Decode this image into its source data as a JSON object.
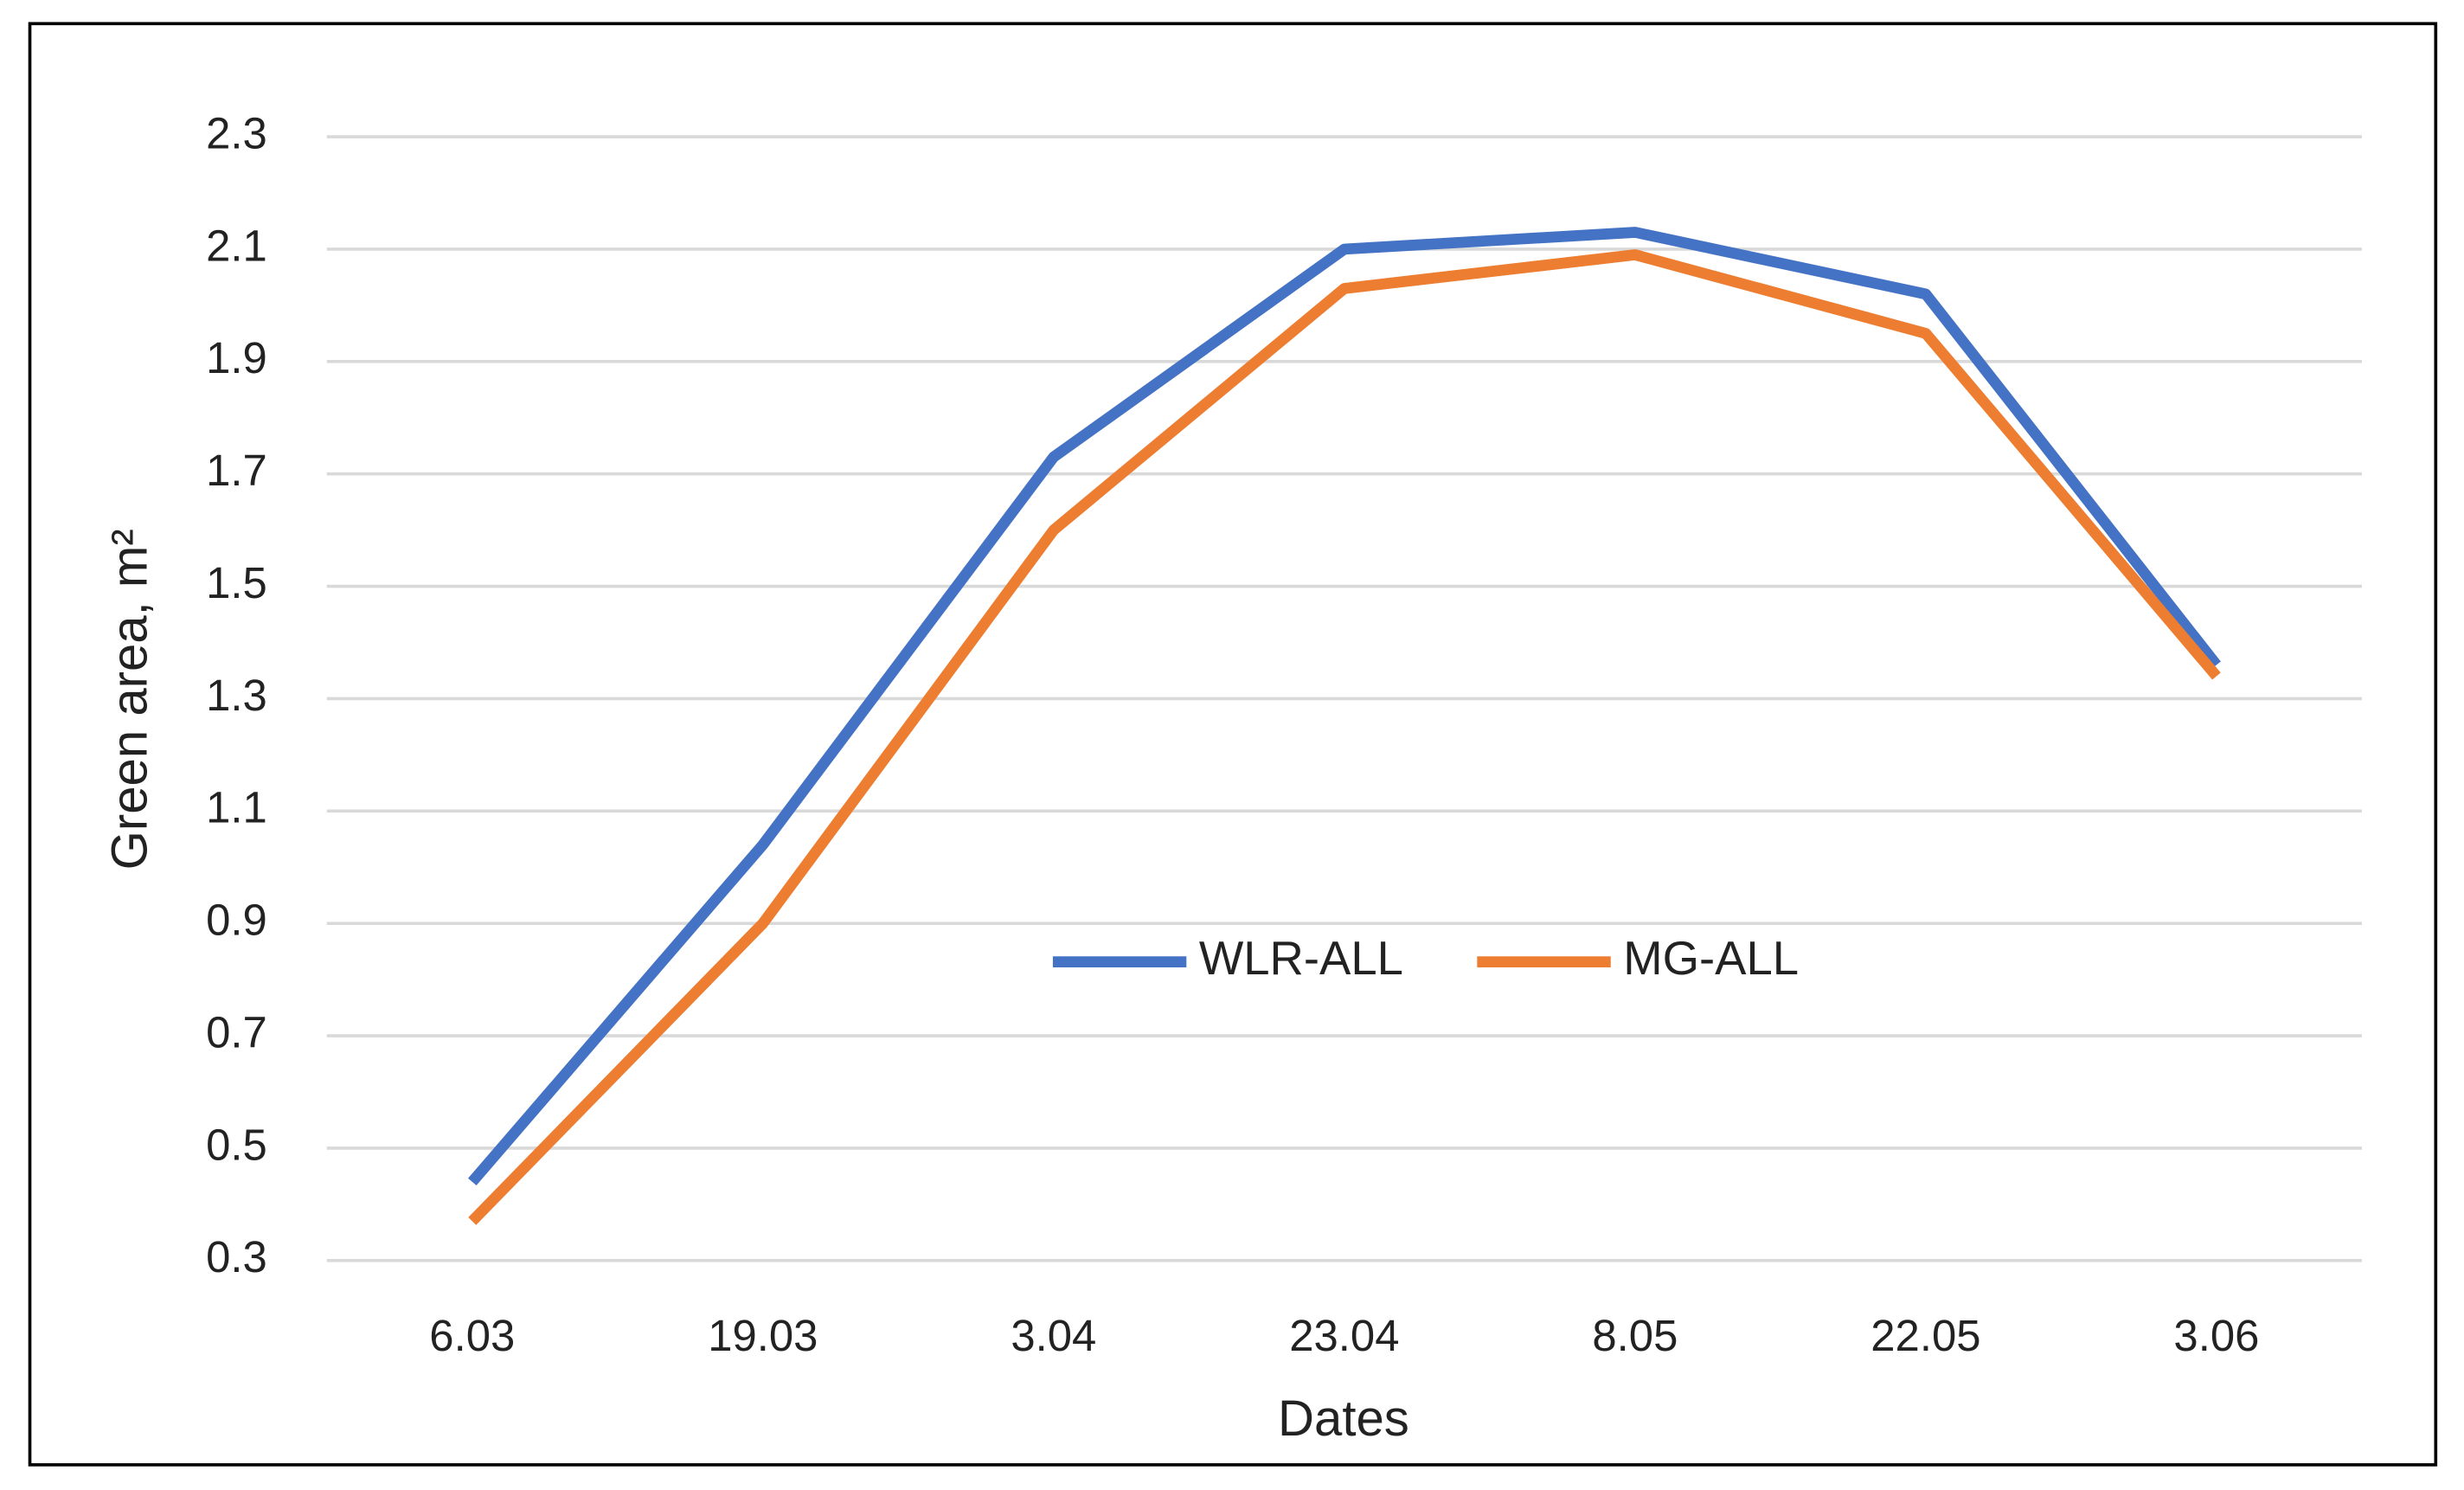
{
  "chart_data": {
    "type": "line",
    "x_label": "Dates",
    "y_label": "Green area, m²",
    "categories": [
      "6.03",
      "19.03",
      "3.04",
      "23.04",
      "8.05",
      "22.05",
      "3.06"
    ],
    "series": [
      {
        "name": "WLR-ALL",
        "color": "#4472c4",
        "values": [
          0.44,
          1.04,
          1.73,
          2.1,
          2.13,
          2.02,
          1.36
        ]
      },
      {
        "name": "MG-ALL",
        "color": "#ed7d31",
        "values": [
          0.37,
          0.9,
          1.6,
          2.03,
          2.09,
          1.95,
          1.34
        ]
      }
    ],
    "ylim": [
      0.3,
      2.3
    ],
    "yticks": [
      0.3,
      0.5,
      0.7,
      0.9,
      1.1,
      1.3,
      1.5,
      1.7,
      1.9,
      2.1,
      2.3
    ],
    "grid": true,
    "legend": "center"
  }
}
